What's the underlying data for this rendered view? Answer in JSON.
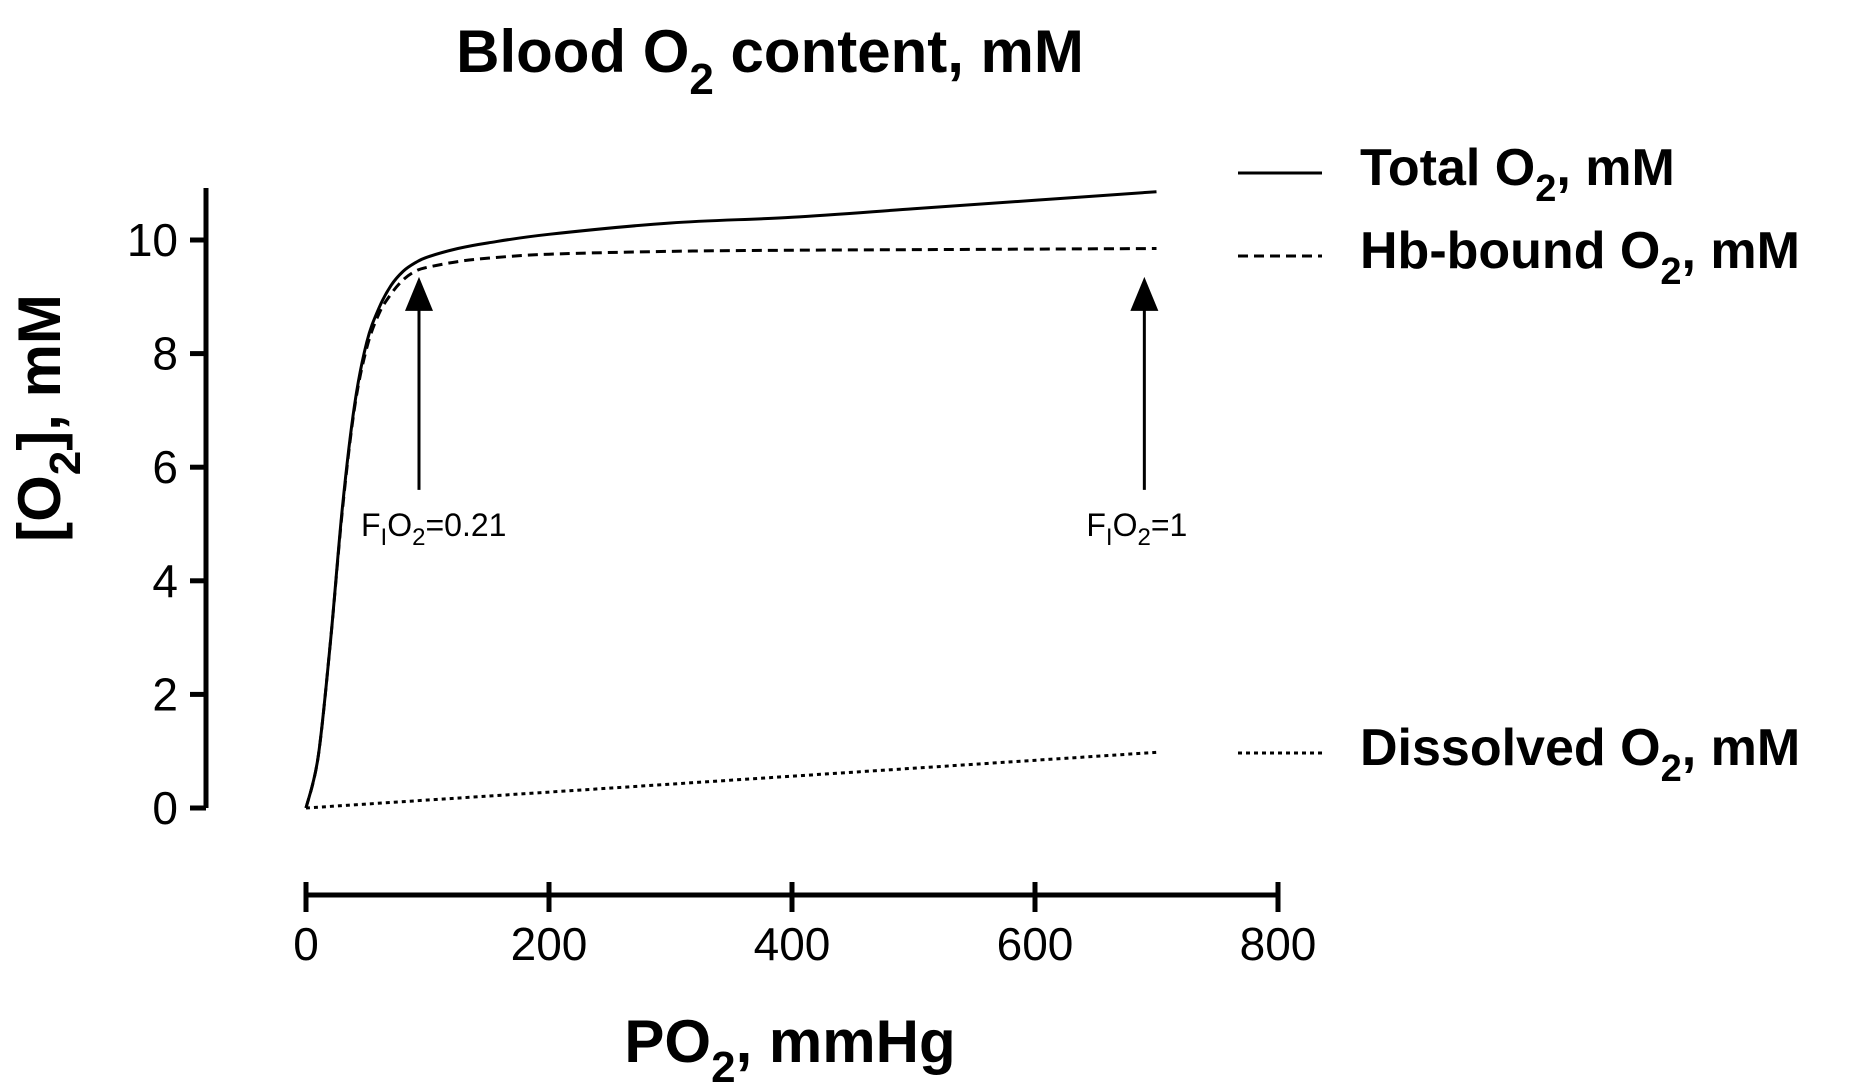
{
  "chart_data": {
    "type": "line",
    "title": {
      "main": "Blood O",
      "sub": "2",
      "rest": " content, mM"
    },
    "xlabel": {
      "main": "PO",
      "sub": "2",
      "rest": ", mmHg"
    },
    "ylabel": {
      "pre": "[O",
      "sub": "2",
      "rest": "], mM"
    },
    "xlim": [
      0,
      800
    ],
    "ylim": [
      0,
      10
    ],
    "xticks": [
      0,
      200,
      400,
      600,
      800
    ],
    "xtick_labels": [
      "0",
      "200",
      "400",
      "600",
      "800"
    ],
    "yticks": [
      0,
      2,
      4,
      6,
      8,
      10
    ],
    "ytick_labels": [
      "0",
      "2",
      "4",
      "6",
      "8",
      "10"
    ],
    "grid": false,
    "legend_position": "right",
    "series": [
      {
        "name": {
          "main": "Total O",
          "sub": "2",
          "rest": ", mM"
        },
        "style": "solid",
        "x": [
          0,
          10,
          20,
          30,
          40,
          50,
          60,
          70,
          80,
          90,
          100,
          125,
          150,
          200,
          300,
          400,
          500,
          600,
          700
        ],
        "y": [
          0,
          0.9,
          2.9,
          5.3,
          7.1,
          8.2,
          8.8,
          9.2,
          9.45,
          9.6,
          9.7,
          9.85,
          9.95,
          10.1,
          10.3,
          10.4,
          10.55,
          10.7,
          10.85
        ]
      },
      {
        "name": {
          "main": "Hb-bound O",
          "sub": "2",
          "rest": ", mM"
        },
        "style": "dashed",
        "x": [
          0,
          10,
          20,
          30,
          40,
          50,
          60,
          70,
          80,
          90,
          100,
          125,
          150,
          200,
          300,
          400,
          500,
          600,
          700
        ],
        "y": [
          0,
          0.9,
          2.9,
          5.25,
          7.05,
          8.1,
          8.7,
          9.05,
          9.3,
          9.45,
          9.52,
          9.62,
          9.68,
          9.75,
          9.8,
          9.82,
          9.83,
          9.84,
          9.85
        ]
      },
      {
        "name": {
          "main": "Dissolved O",
          "sub": "2",
          "rest": ", mM"
        },
        "style": "dotted",
        "x": [
          0,
          700
        ],
        "y": [
          0,
          0.98
        ]
      }
    ],
    "annotations": [
      {
        "x": 93,
        "y_tip": 9.35,
        "y_tail": 5.6,
        "label": {
          "pre": "F",
          "sub1": "I",
          "mid": "O",
          "sub2": "2",
          "rest": "=0.21"
        }
      },
      {
        "x": 690,
        "y_tip": 9.35,
        "y_tail": 5.6,
        "label": {
          "pre": "F",
          "sub1": "I",
          "mid": "O",
          "sub2": "2",
          "rest": "=1"
        }
      }
    ]
  }
}
